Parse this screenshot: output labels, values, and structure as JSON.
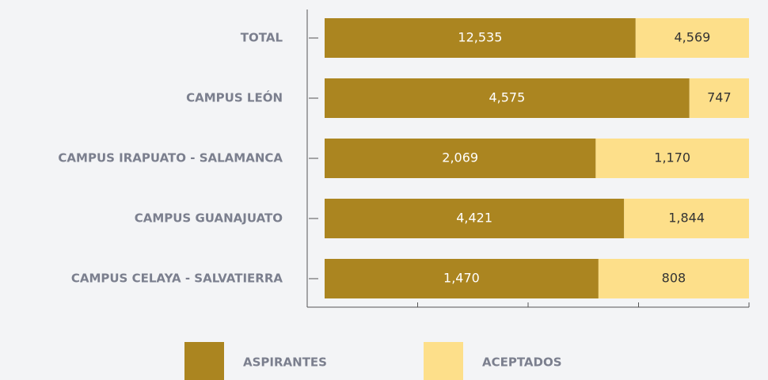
{
  "chart_data": {
    "type": "bar_percent_stacked",
    "orientation": "horizontal",
    "categories": [
      "TOTAL",
      "CAMPUS LEÓN",
      "CAMPUS IRAPUATO - SALAMANCA",
      "CAMPUS GUANAJUATO",
      "CAMPUS CELAYA - SALVATIERRA"
    ],
    "series": [
      {
        "name": "ASPIRANTES",
        "color": "#ab8520",
        "values": [
          12535,
          4575,
          2069,
          4421,
          1470
        ],
        "value_labels": [
          "12,535",
          "4,575",
          "2,069",
          "4,421",
          "1,470"
        ]
      },
      {
        "name": "ACEPTADOS",
        "color": "#fddf8a",
        "values": [
          4569,
          747,
          1170,
          1844,
          808
        ],
        "value_labels": [
          "4,569",
          "747",
          "1,170",
          "1,844",
          "808"
        ]
      }
    ],
    "xlim": [
      0,
      100
    ],
    "xticks": [
      0,
      25,
      50,
      75,
      100
    ],
    "legend": "bottom"
  }
}
